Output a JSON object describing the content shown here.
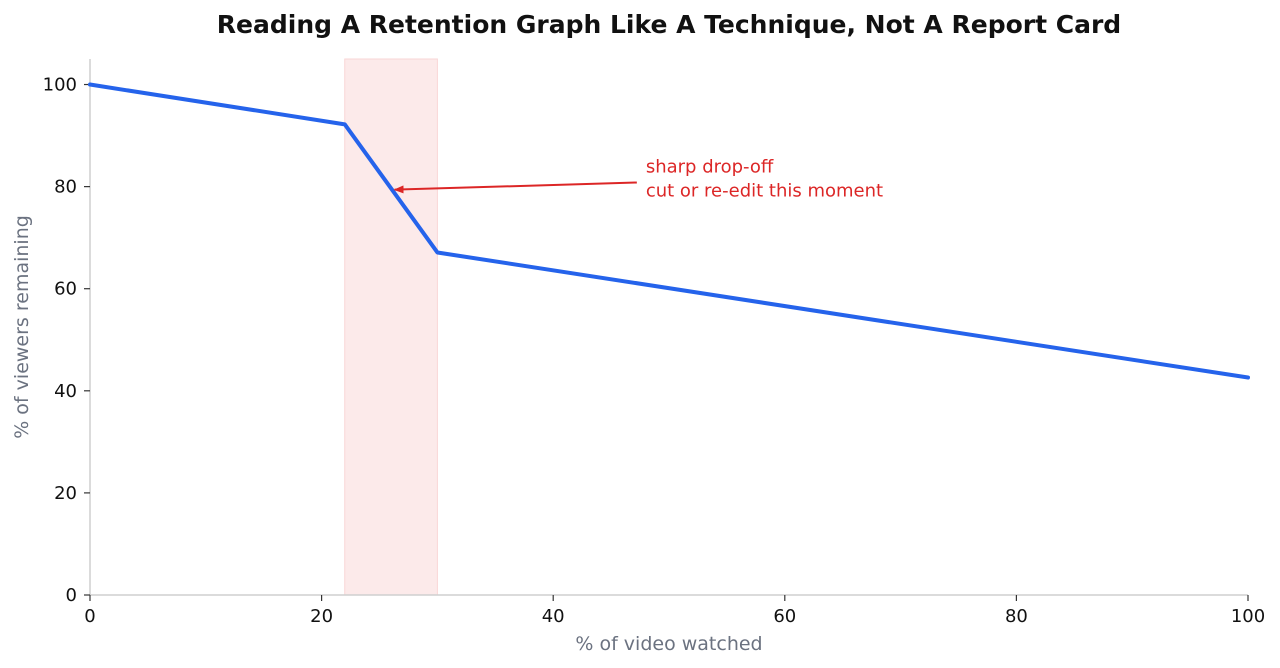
{
  "chart_data": {
    "type": "line",
    "title": "Reading A Retention Graph Like A Technique, Not A Report Card",
    "xlabel": "% of video watched",
    "ylabel": "% of viewers remaining",
    "xlim": [
      0,
      100
    ],
    "ylim": [
      0,
      105
    ],
    "xticks": [
      0,
      20,
      40,
      60,
      80,
      100
    ],
    "yticks": [
      0,
      20,
      40,
      60,
      80,
      100
    ],
    "grid": false,
    "series": [
      {
        "x": [
          0,
          22,
          30,
          100
        ],
        "y": [
          100,
          92.2,
          67.1,
          42.6
        ],
        "color": "#2563eb"
      }
    ],
    "highlight_region": {
      "x": [
        22,
        30
      ],
      "color": "#f9d6d6"
    },
    "annotation": {
      "lines": [
        "sharp drop-off",
        "cut or re-edit this moment"
      ],
      "text_at": [
        48,
        81
      ],
      "arrow_to": [
        26.3,
        79.4
      ],
      "color": "#dc2626"
    }
  }
}
